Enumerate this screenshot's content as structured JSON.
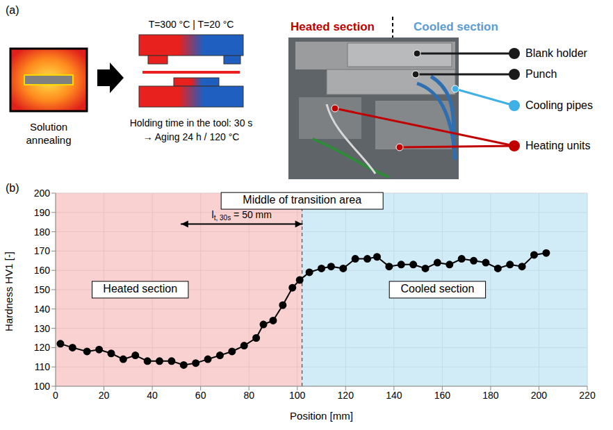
{
  "diagram": {
    "panel_a": "(a)",
    "panel_b": "(b)",
    "temperatures": "T=300 °C | T=20 °C",
    "furnace_label": "Solution annealing",
    "tool_note_1": "Holding time in the tool: 30 s",
    "tool_note_2": "→ Aging 24 h / 120 °C",
    "photo_titles": [
      {
        "text": "Heated section",
        "color": "#c00000"
      },
      {
        "text": "Cooled section",
        "color": "#5b9bd5"
      }
    ],
    "photo_labels": [
      {
        "text": "Blank holder",
        "color": "#1a1a1a"
      },
      {
        "text": "Punch",
        "color": "#1a1a1a"
      },
      {
        "text": "Cooling pipes",
        "color": "#3fb0e6"
      },
      {
        "text": "Heating units",
        "color": "#c00000"
      }
    ]
  },
  "chart_data": {
    "type": "line",
    "x_label": "Position [mm]",
    "y_label": "Hardness HV1 [-]",
    "x": [
      2,
      7,
      13,
      18,
      23,
      28,
      33,
      38,
      43,
      48,
      53,
      58,
      63,
      68,
      73,
      78,
      83,
      86,
      90,
      94,
      98,
      101,
      105,
      110,
      114,
      119,
      124,
      129,
      133,
      138,
      143,
      148,
      153,
      158,
      163,
      168,
      173,
      178,
      183,
      188,
      193,
      198,
      203
    ],
    "values": [
      122,
      120,
      118,
      119,
      117,
      114,
      116,
      113,
      113,
      113,
      111,
      112,
      114,
      116,
      118,
      121,
      125,
      132,
      134,
      142,
      151,
      155,
      159,
      161,
      162,
      161,
      166,
      166,
      167,
      162,
      163,
      163,
      161,
      164,
      163,
      166,
      165,
      164,
      161,
      163,
      162,
      168,
      169
    ],
    "color": "#000000",
    "marker": "circle",
    "xlim": [
      0,
      220
    ],
    "xticks": [
      0,
      20,
      40,
      60,
      80,
      100,
      120,
      140,
      160,
      180,
      200,
      220
    ],
    "ylim": [
      100,
      200
    ],
    "yticks": [
      100,
      110,
      120,
      130,
      140,
      150,
      160,
      170,
      180,
      190,
      200
    ],
    "grid": true,
    "regions": [
      {
        "label": "Heated section",
        "x": [
          0,
          102
        ],
        "color": "#f6b8b8",
        "label_position": [
          35,
          150
        ]
      },
      {
        "label": "Cooled section",
        "x": [
          102,
          220
        ],
        "color": "#b9e0f3",
        "label_position": [
          158,
          150
        ]
      }
    ],
    "transition": {
      "text": "Middle of transition area",
      "x": 102,
      "text_y": 196
    },
    "length_arrow": {
      "x": [
        52,
        102
      ],
      "y": 184,
      "text_y": 188.5,
      "symbol": "l",
      "subscript": "t, 30s",
      "rest": " = 50 mm"
    }
  }
}
